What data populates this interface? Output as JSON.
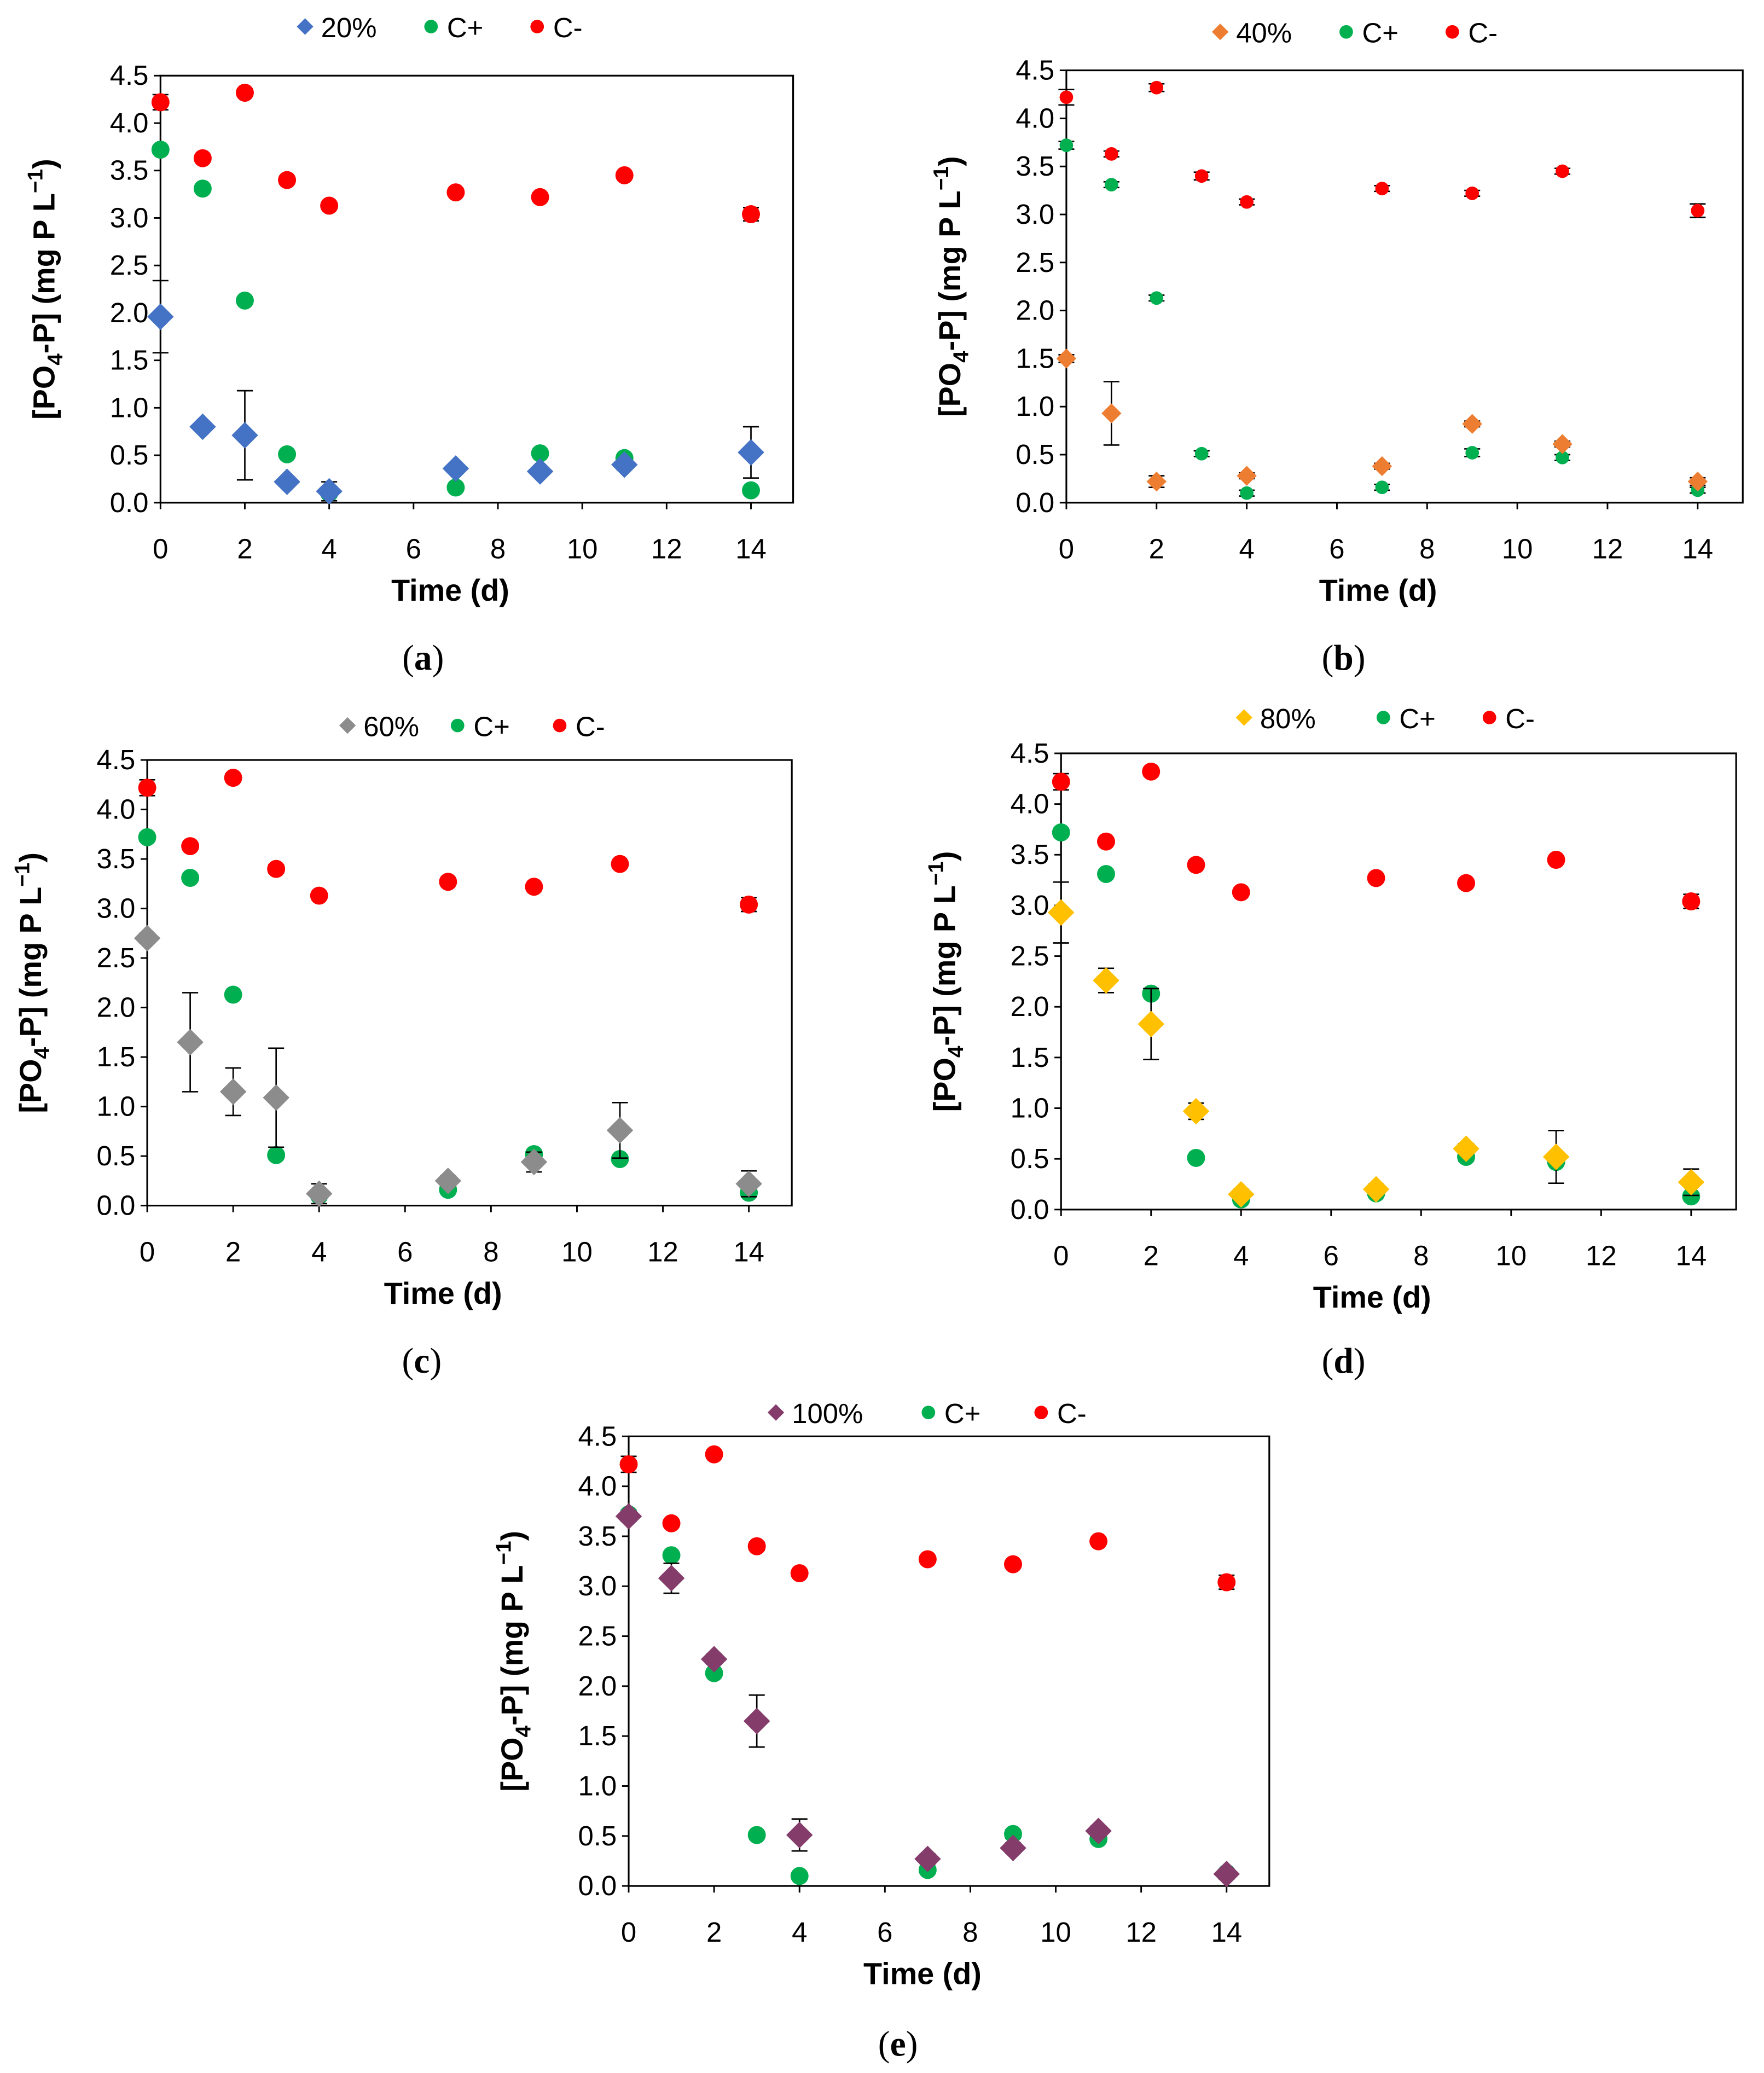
{
  "chart_data": [
    {
      "panel": "a",
      "caption": "(a)",
      "type": "scatter",
      "xlabel": "Time (d)",
      "ylabel": {
        "pre": "[PO",
        "sub": "4",
        "mid": "-P] (mg P L",
        "sup": "−1",
        "post": ")"
      },
      "xlim": [
        0,
        15
      ],
      "ylim": [
        0,
        4.5
      ],
      "xticks": [
        0,
        2,
        4,
        6,
        8,
        10,
        12,
        14
      ],
      "yticks": [
        "0.0",
        "0.5",
        "1.0",
        "1.5",
        "2.0",
        "2.5",
        "3.0",
        "3.5",
        "4.0",
        "4.5"
      ],
      "legend_position": "top-center",
      "grid": false,
      "x": [
        0,
        1,
        2,
        3,
        4,
        7,
        9,
        11,
        14
      ],
      "series": [
        {
          "name": "20%",
          "marker": "diamond",
          "color": "#4472C4",
          "values": [
            1.96,
            0.8,
            0.71,
            0.22,
            0.12,
            0.36,
            0.33,
            0.4,
            0.53
          ],
          "errors": [
            0.38,
            0.04,
            0.47,
            0.05,
            0.1,
            0.04,
            0.04,
            0.05,
            0.27
          ]
        },
        {
          "name": "C+",
          "marker": "circle",
          "color": "#00B050",
          "values": [
            3.72,
            3.31,
            2.13,
            0.51,
            0.1,
            0.16,
            0.52,
            0.47,
            0.13
          ],
          "errors": [
            0.04,
            0.03,
            0.03,
            0.03,
            0.03,
            0.03,
            0.04,
            0.03,
            0.03
          ]
        },
        {
          "name": "C-",
          "marker": "circle",
          "color": "#FF0000",
          "values": [
            4.22,
            3.63,
            4.32,
            3.4,
            3.13,
            3.27,
            3.22,
            3.45,
            3.04
          ],
          "errors": [
            0.08,
            0.03,
            0.04,
            0.04,
            0.03,
            0.03,
            0.03,
            0.03,
            0.07
          ]
        }
      ]
    },
    {
      "panel": "b",
      "caption": "(b)",
      "type": "scatter",
      "xlabel": "Time (d)",
      "ylabel": {
        "pre": "[PO",
        "sub": "4",
        "mid": "-P] (mg P L",
        "sup": "−1",
        "post": ")"
      },
      "xlim": [
        0,
        15
      ],
      "ylim": [
        0,
        4.5
      ],
      "xticks": [
        0,
        2,
        4,
        6,
        8,
        10,
        12,
        14
      ],
      "yticks": [
        "0.0",
        "0.5",
        "1.0",
        "1.5",
        "2.0",
        "2.5",
        "3.0",
        "3.5",
        "4.0",
        "4.5"
      ],
      "legend_position": "top-center",
      "grid": false,
      "x": [
        0,
        1,
        2,
        3,
        4,
        7,
        9,
        11,
        14
      ],
      "series": [
        {
          "name": "40%",
          "marker": "diamond",
          "color": "#ED7D31",
          "values": [
            1.5,
            0.93,
            0.22,
            null,
            0.28,
            0.38,
            0.82,
            0.61,
            0.22
          ],
          "errors": [
            0.04,
            0.33,
            0.06,
            null,
            0.03,
            0.03,
            0.03,
            0.03,
            0.04
          ]
        },
        {
          "name": "C+",
          "marker": "circle",
          "color": "#00B050",
          "values": [
            3.72,
            3.31,
            2.13,
            0.51,
            0.1,
            0.16,
            0.52,
            0.47,
            0.13
          ],
          "errors": [
            0.04,
            0.03,
            0.03,
            0.03,
            0.03,
            0.03,
            0.04,
            0.03,
            0.03
          ]
        },
        {
          "name": "C-",
          "marker": "circle",
          "color": "#FF0000",
          "values": [
            4.22,
            3.63,
            4.32,
            3.4,
            3.13,
            3.27,
            3.22,
            3.45,
            3.04
          ],
          "errors": [
            0.08,
            0.03,
            0.04,
            0.04,
            0.03,
            0.03,
            0.03,
            0.03,
            0.07
          ]
        }
      ]
    },
    {
      "panel": "c",
      "caption": "(c)",
      "type": "scatter",
      "xlabel": "Time (d)",
      "ylabel": {
        "pre": "[PO",
        "sub": "4",
        "mid": "-P] (mg P L",
        "sup": "−1",
        "post": ")"
      },
      "xlim": [
        0,
        15
      ],
      "ylim": [
        0,
        4.5
      ],
      "xticks": [
        0,
        2,
        4,
        6,
        8,
        10,
        12,
        14
      ],
      "yticks": [
        "0.0",
        "0.5",
        "1.0",
        "1.5",
        "2.0",
        "2.5",
        "3.0",
        "3.5",
        "4.0",
        "4.5"
      ],
      "legend_position": "top-center",
      "grid": false,
      "x": [
        0,
        1,
        2,
        3,
        4,
        7,
        9,
        11,
        14
      ],
      "series": [
        {
          "name": "60%",
          "marker": "diamond",
          "color": "#8C8C8C",
          "values": [
            2.7,
            1.65,
            1.15,
            1.09,
            0.12,
            0.25,
            0.44,
            0.76,
            0.22
          ],
          "errors": [
            0.05,
            0.5,
            0.24,
            0.5,
            0.1,
            0.05,
            0.1,
            0.28,
            0.13
          ]
        },
        {
          "name": "C+",
          "marker": "circle",
          "color": "#00B050",
          "values": [
            3.72,
            3.31,
            2.13,
            0.51,
            0.1,
            0.16,
            0.52,
            0.47,
            0.13
          ],
          "errors": [
            0.04,
            0.03,
            0.03,
            0.03,
            0.03,
            0.03,
            0.04,
            0.03,
            0.03
          ]
        },
        {
          "name": "C-",
          "marker": "circle",
          "color": "#FF0000",
          "values": [
            4.22,
            3.63,
            4.32,
            3.4,
            3.13,
            3.27,
            3.22,
            3.45,
            3.04
          ],
          "errors": [
            0.08,
            0.03,
            0.04,
            0.04,
            0.03,
            0.03,
            0.03,
            0.03,
            0.07
          ]
        }
      ]
    },
    {
      "panel": "d",
      "caption": "(d)",
      "type": "scatter",
      "xlabel": "Time (d)",
      "ylabel": {
        "pre": "[PO",
        "sub": "4",
        "mid": "-P] (mg P L",
        "sup": "−1",
        "post": ")"
      },
      "xlim": [
        0,
        15
      ],
      "ylim": [
        0,
        4.5
      ],
      "xticks": [
        0,
        2,
        4,
        6,
        8,
        10,
        12,
        14
      ],
      "yticks": [
        "0.0",
        "0.5",
        "1.0",
        "1.5",
        "2.0",
        "2.5",
        "3.0",
        "3.5",
        "4.0",
        "4.5"
      ],
      "legend_position": "top-center",
      "grid": false,
      "x": [
        0,
        1,
        2,
        3,
        4,
        7,
        9,
        11,
        14
      ],
      "series": [
        {
          "name": "80%",
          "marker": "diamond",
          "color": "#FFC000",
          "values": [
            2.93,
            2.26,
            1.83,
            0.97,
            0.15,
            0.2,
            0.6,
            0.52,
            0.27
          ],
          "errors": [
            0.3,
            0.12,
            0.35,
            0.08,
            0.05,
            0.05,
            0.05,
            0.26,
            0.13
          ]
        },
        {
          "name": "C+",
          "marker": "circle",
          "color": "#00B050",
          "values": [
            3.72,
            3.31,
            2.13,
            0.51,
            0.1,
            0.16,
            0.52,
            0.47,
            0.13
          ],
          "errors": [
            0.04,
            0.03,
            0.03,
            0.03,
            0.03,
            0.03,
            0.04,
            0.03,
            0.03
          ]
        },
        {
          "name": "C-",
          "marker": "circle",
          "color": "#FF0000",
          "values": [
            4.22,
            3.63,
            4.32,
            3.4,
            3.13,
            3.27,
            3.22,
            3.45,
            3.04
          ],
          "errors": [
            0.08,
            0.03,
            0.04,
            0.04,
            0.03,
            0.03,
            0.03,
            0.03,
            0.07
          ]
        }
      ]
    },
    {
      "panel": "e",
      "caption": "(e)",
      "type": "scatter",
      "xlabel": "Time (d)",
      "ylabel": {
        "pre": "[PO",
        "sub": "4",
        "mid": "-P] (mg P L",
        "sup": "−1",
        "post": ")"
      },
      "xlim": [
        0,
        15
      ],
      "ylim": [
        0,
        4.5
      ],
      "xticks": [
        0,
        2,
        4,
        6,
        8,
        10,
        12,
        14
      ],
      "yticks": [
        "0.0",
        "0.5",
        "1.0",
        "1.5",
        "2.0",
        "2.5",
        "3.0",
        "3.5",
        "4.0",
        "4.5"
      ],
      "legend_position": "top-center",
      "grid": false,
      "x": [
        0,
        1,
        2,
        3,
        4,
        7,
        9,
        11,
        14
      ],
      "series": [
        {
          "name": "100%",
          "marker": "diamond",
          "color": "#843C6B",
          "values": [
            3.7,
            3.08,
            2.27,
            1.65,
            0.51,
            0.27,
            0.38,
            0.55,
            0.12
          ],
          "errors": [
            0.05,
            0.15,
            0.05,
            0.26,
            0.16,
            0.05,
            0.05,
            0.05,
            0.05
          ]
        },
        {
          "name": "C+",
          "marker": "circle",
          "color": "#00B050",
          "values": [
            3.72,
            3.31,
            2.13,
            0.51,
            0.1,
            0.16,
            0.52,
            0.47,
            0.13
          ],
          "errors": [
            0.04,
            0.03,
            0.03,
            0.03,
            0.03,
            0.03,
            0.04,
            0.03,
            0.03
          ]
        },
        {
          "name": "C-",
          "marker": "circle",
          "color": "#FF0000",
          "values": [
            4.22,
            3.63,
            4.32,
            3.4,
            3.13,
            3.27,
            3.22,
            3.45,
            3.04
          ],
          "errors": [
            0.08,
            0.03,
            0.04,
            0.04,
            0.03,
            0.03,
            0.03,
            0.03,
            0.07
          ]
        }
      ]
    }
  ]
}
